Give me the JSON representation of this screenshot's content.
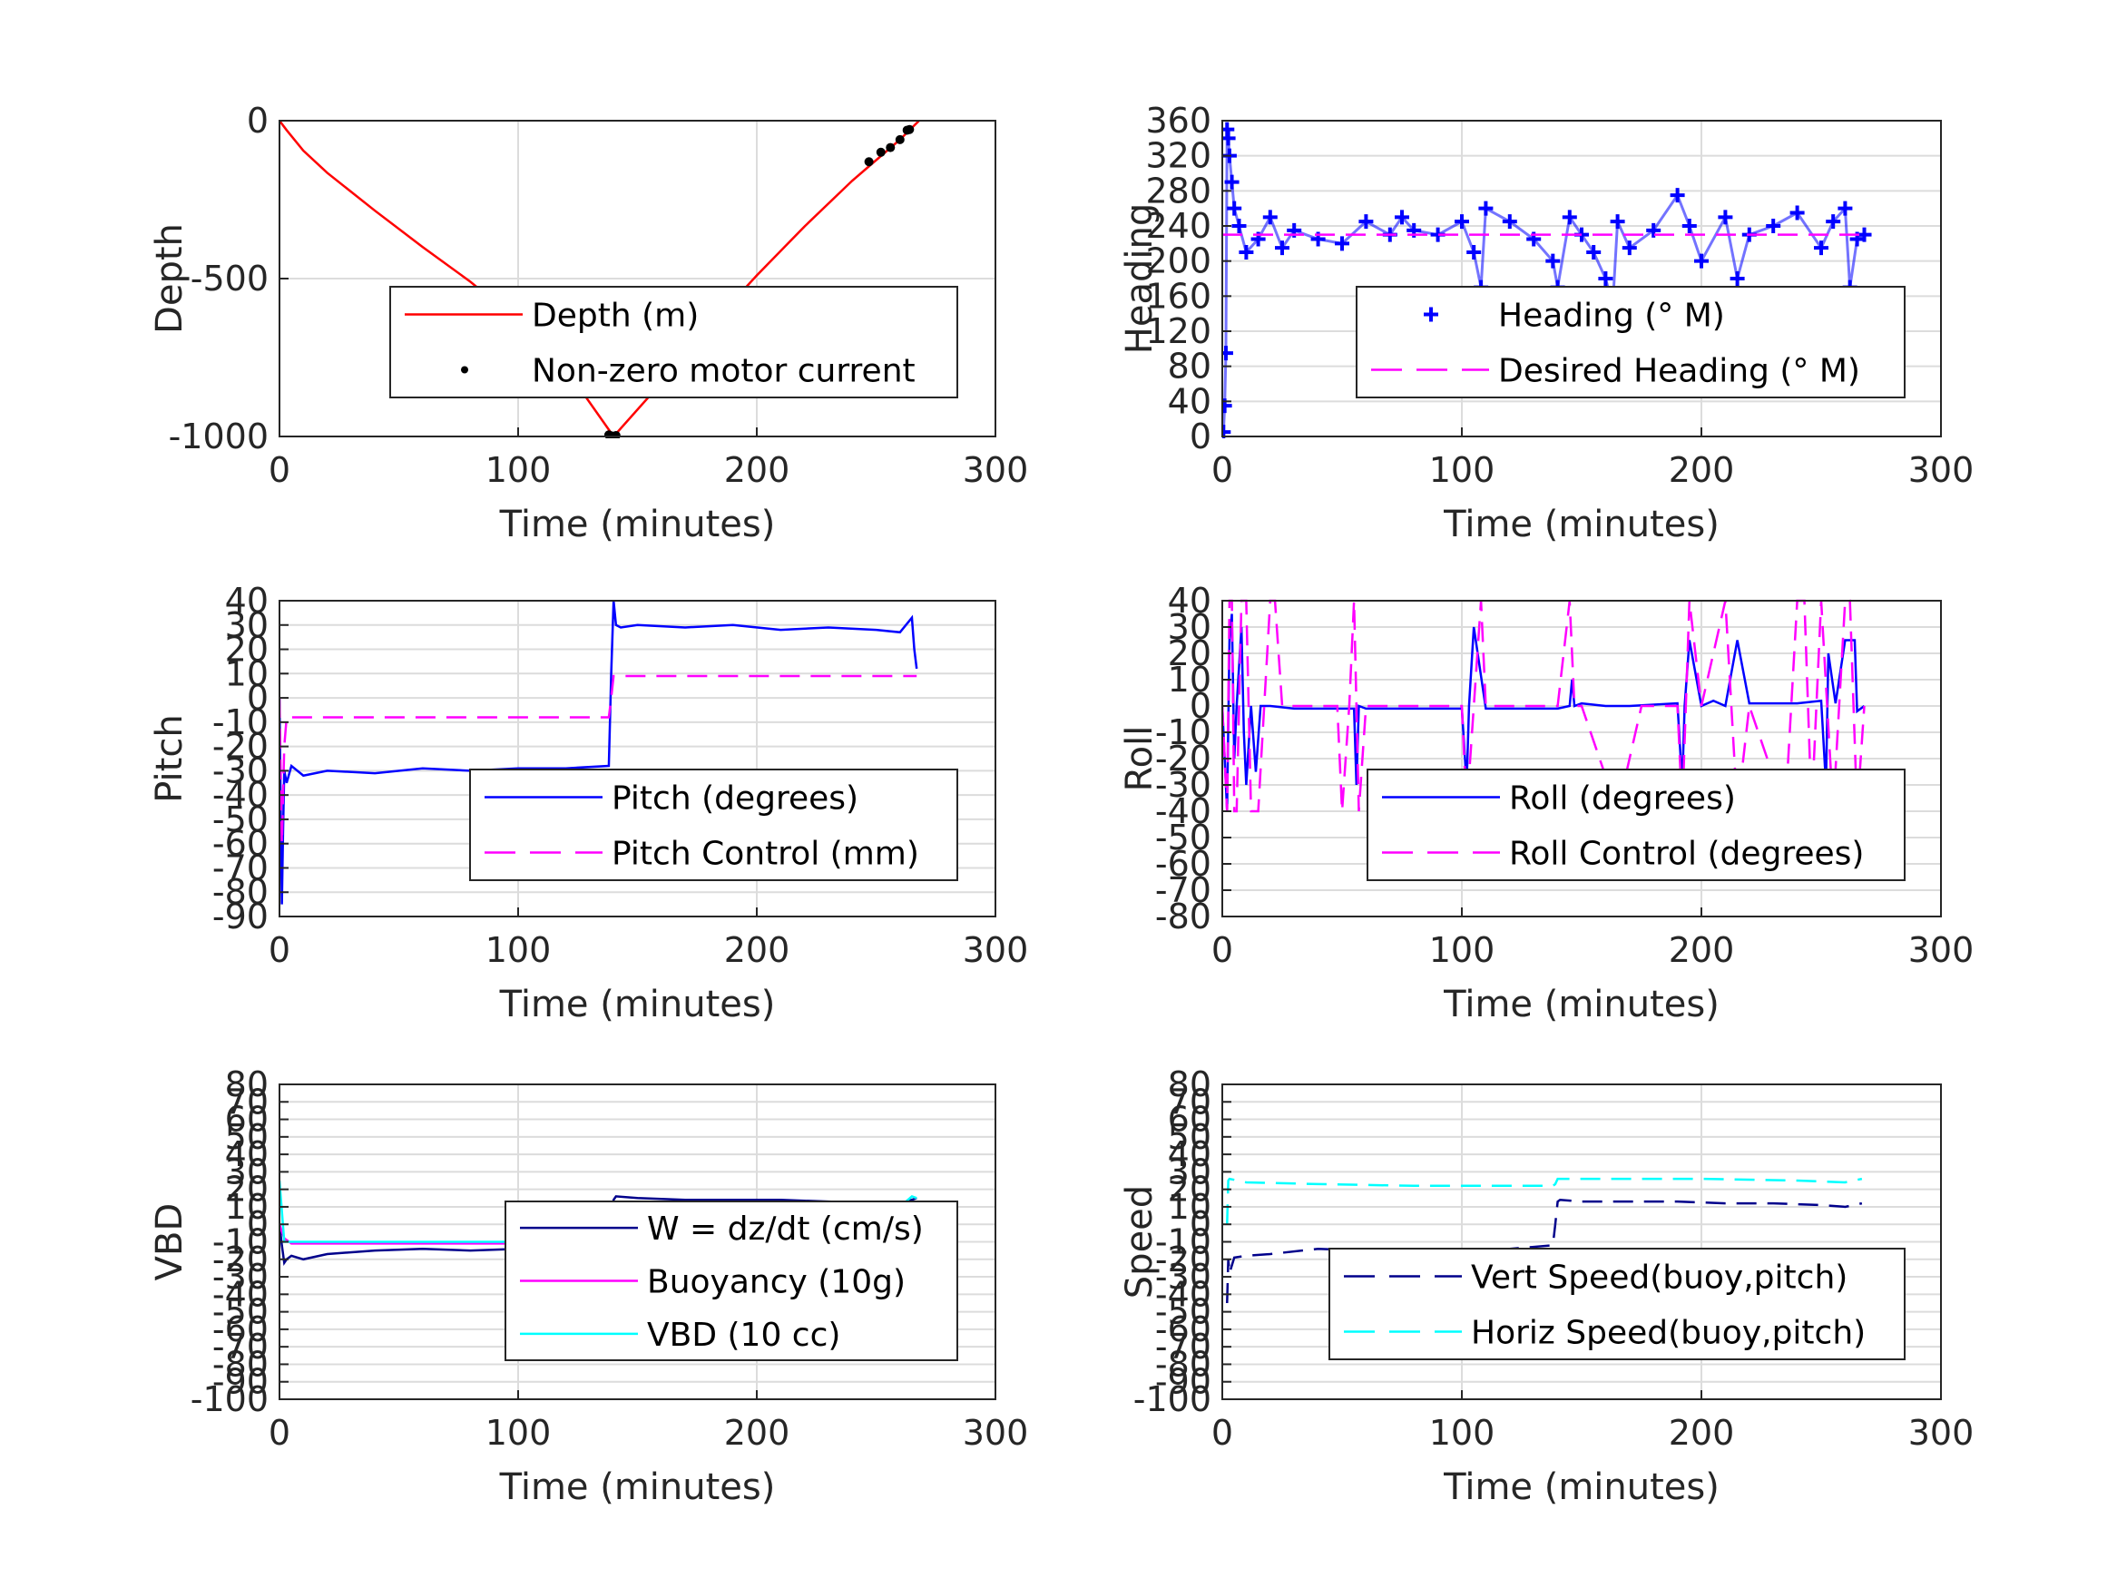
{
  "chart_data": [
    {
      "id": "depth",
      "type": "line",
      "xlabel": "Time (minutes)",
      "ylabel": "Depth",
      "xlim": [
        0,
        300
      ],
      "ylim": [
        -1000,
        0
      ],
      "xticks": [
        0,
        100,
        200,
        300
      ],
      "yticks": [
        -1000,
        -500,
        0
      ],
      "legend_position": "lower-right",
      "series": [
        {
          "name": "Depth (m)",
          "color": "#ff0000",
          "style": "solid",
          "x": [
            0,
            3,
            10,
            20,
            40,
            60,
            80,
            100,
            120,
            140,
            160,
            180,
            200,
            220,
            240,
            250,
            260,
            268
          ],
          "y": [
            0,
            -30,
            -95,
            -165,
            -285,
            -400,
            -510,
            -635,
            -785,
            -1000,
            -830,
            -655,
            -490,
            -335,
            -190,
            -125,
            -60,
            0
          ]
        },
        {
          "name": "Non-zero motor current",
          "color": "#000000",
          "style": "points",
          "x": [
            138,
            139,
            140,
            141,
            247,
            252,
            256,
            260,
            263,
            264
          ],
          "y": [
            -995,
            -998,
            -1000,
            -997,
            -130,
            -100,
            -85,
            -60,
            -30,
            -28
          ]
        }
      ]
    },
    {
      "id": "heading",
      "type": "scatter",
      "xlabel": "Time (minutes)",
      "ylabel": "Heading",
      "xlim": [
        0,
        300
      ],
      "ylim": [
        0,
        360
      ],
      "xticks": [
        0,
        100,
        200,
        300
      ],
      "yticks": [
        0,
        40,
        80,
        120,
        160,
        200,
        240,
        280,
        320,
        360
      ],
      "legend_position": "lower-right",
      "series": [
        {
          "name": "Heading (° M)",
          "color": "#0000ff",
          "style": "plus",
          "x": [
            0.5,
            1,
            1.5,
            2,
            2.5,
            3,
            4,
            5,
            7,
            10,
            15,
            20,
            25,
            30,
            40,
            50,
            60,
            70,
            75,
            80,
            90,
            100,
            105,
            108,
            110,
            120,
            130,
            138,
            140,
            145,
            150,
            155,
            160,
            163,
            165,
            170,
            180,
            190,
            195,
            200,
            210,
            215,
            220,
            230,
            240,
            250,
            255,
            260,
            262,
            265,
            268
          ],
          "y": [
            5,
            35,
            95,
            350,
            340,
            320,
            290,
            260,
            240,
            210,
            225,
            250,
            215,
            235,
            225,
            220,
            245,
            230,
            250,
            235,
            230,
            245,
            210,
            170,
            260,
            245,
            225,
            200,
            170,
            250,
            230,
            210,
            180,
            150,
            245,
            215,
            235,
            275,
            240,
            200,
            250,
            180,
            230,
            240,
            255,
            215,
            245,
            260,
            170,
            225,
            230
          ]
        },
        {
          "name": "Desired Heading (° M)",
          "color": "#ff00ff",
          "style": "dashed",
          "x": [
            0,
            268
          ],
          "y": [
            230,
            230
          ]
        }
      ]
    },
    {
      "id": "pitch",
      "type": "line",
      "xlabel": "Time (minutes)",
      "ylabel": "Pitch",
      "xlim": [
        0,
        300
      ],
      "ylim": [
        -90,
        40
      ],
      "xticks": [
        0,
        100,
        200,
        300
      ],
      "yticks": [
        -90,
        -80,
        -70,
        -60,
        -50,
        -40,
        -30,
        -20,
        -10,
        0,
        10,
        20,
        30,
        40
      ],
      "legend_position": "lower-right",
      "series": [
        {
          "name": "Pitch (degrees)",
          "color": "#0000ff",
          "style": "solid",
          "x": [
            0,
            0.5,
            1,
            1.5,
            2,
            3,
            5,
            10,
            20,
            40,
            60,
            80,
            100,
            120,
            138,
            139,
            140,
            141,
            143,
            150,
            170,
            190,
            210,
            230,
            250,
            260,
            265,
            266,
            267
          ],
          "y": [
            0,
            -45,
            -85,
            -55,
            -30,
            -35,
            -28,
            -32,
            -30,
            -31,
            -29,
            -30,
            -29,
            -29,
            -28,
            10,
            40,
            30,
            29,
            30,
            29,
            30,
            28,
            29,
            28,
            27,
            33,
            20,
            12
          ]
        },
        {
          "name": "Pitch Control (mm)",
          "color": "#ff00ff",
          "style": "dashed",
          "x": [
            0,
            1,
            2,
            3,
            5,
            138,
            139,
            140,
            141,
            267
          ],
          "y": [
            0,
            -60,
            -20,
            -8,
            -8,
            -8,
            0,
            9,
            9,
            9
          ]
        }
      ]
    },
    {
      "id": "roll",
      "type": "line",
      "xlabel": "Time (minutes)",
      "ylabel": "Roll",
      "xlim": [
        0,
        300
      ],
      "ylim": [
        -80,
        40
      ],
      "xticks": [
        0,
        100,
        200,
        300
      ],
      "yticks": [
        -80,
        -70,
        -60,
        -50,
        -40,
        -30,
        -20,
        -10,
        0,
        10,
        20,
        30,
        40
      ],
      "legend_position": "lower-right",
      "series": [
        {
          "name": "Roll (degrees)",
          "color": "#0000ff",
          "style": "solid",
          "x": [
            0,
            2,
            3,
            4,
            5,
            6,
            8,
            9,
            10,
            12,
            14,
            16,
            20,
            30,
            55,
            56,
            57,
            60,
            100,
            102,
            103,
            105,
            110,
            140,
            145,
            146,
            147,
            150,
            160,
            170,
            190,
            192,
            193,
            195,
            200,
            205,
            210,
            215,
            220,
            240,
            250,
            252,
            253,
            256,
            260,
            264,
            265,
            268
          ],
          "y": [
            0,
            -40,
            25,
            35,
            -20,
            0,
            30,
            -10,
            -30,
            0,
            -25,
            0,
            0,
            -1,
            -1,
            -30,
            0,
            -1,
            -1,
            -30,
            0,
            30,
            -1,
            -1,
            0,
            10,
            0,
            1,
            0,
            0,
            1,
            -30,
            0,
            25,
            0,
            2,
            0,
            25,
            1,
            1,
            2,
            -30,
            20,
            1,
            25,
            25,
            -2,
            0
          ]
        },
        {
          "name": "Roll Control (degrees)",
          "color": "#ff00ff",
          "style": "dashed",
          "x": [
            0,
            2,
            3,
            4,
            5,
            6,
            8,
            10,
            12,
            15,
            20,
            22,
            25,
            48,
            50,
            53,
            55,
            57,
            60,
            100,
            102,
            105,
            108,
            110,
            140,
            145,
            147,
            150,
            165,
            175,
            190,
            192,
            195,
            200,
            210,
            215,
            220,
            235,
            240,
            243,
            246,
            250,
            255,
            260,
            262,
            265,
            268
          ],
          "y": [
            0,
            -40,
            40,
            40,
            -40,
            -40,
            40,
            40,
            -40,
            -40,
            40,
            40,
            0,
            0,
            -40,
            0,
            40,
            -40,
            0,
            0,
            -40,
            0,
            40,
            0,
            0,
            40,
            0,
            0,
            -40,
            0,
            0,
            -40,
            40,
            0,
            40,
            -40,
            0,
            -40,
            40,
            40,
            -40,
            40,
            -40,
            40,
            40,
            -40,
            0
          ]
        }
      ]
    },
    {
      "id": "vbd",
      "type": "line",
      "xlabel": "Time (minutes)",
      "ylabel": "VBD",
      "xlim": [
        0,
        300
      ],
      "ylim": [
        -100,
        80
      ],
      "xticks": [
        0,
        100,
        200,
        300
      ],
      "yticks": [
        -100,
        -90,
        -80,
        -70,
        -60,
        -50,
        -40,
        -30,
        -20,
        -10,
        0,
        10,
        20,
        30,
        40,
        50,
        60,
        70,
        80
      ],
      "ytick_labels": [
        "-100",
        "-90",
        "-80",
        "-70",
        "-60",
        "-50",
        "-40",
        "-30",
        "-20",
        "-10",
        "0",
        "10",
        "20",
        "30",
        "40",
        "50",
        "60",
        "70",
        "80"
      ],
      "legend_position": "lower-right",
      "series": [
        {
          "name": "W = dz/dt (cm/s)",
          "color": "#00008b",
          "style": "solid",
          "x": [
            0,
            1,
            2,
            3,
            5,
            10,
            20,
            40,
            60,
            80,
            100,
            120,
            138,
            139,
            140,
            141,
            150,
            170,
            190,
            210,
            230,
            250,
            255,
            260,
            265,
            267
          ],
          "y": [
            0,
            -12,
            -22,
            -20,
            -18,
            -20,
            -17,
            -15,
            -14,
            -15,
            -14,
            -13,
            -12,
            5,
            14,
            16,
            15,
            14,
            14,
            14,
            13,
            12,
            10,
            12,
            14,
            15
          ]
        },
        {
          "name": "Buoyancy (10g)",
          "color": "#ff00ff",
          "style": "solid",
          "x": [
            0,
            2,
            5,
            138,
            139,
            140,
            250,
            260,
            265,
            267
          ],
          "y": [
            0,
            -8,
            -11,
            -11,
            0,
            10,
            10,
            8,
            12,
            11
          ]
        },
        {
          "name": "VBD (10 cc)",
          "color": "#00ffff",
          "style": "solid",
          "x": [
            0,
            2,
            5,
            138,
            139,
            140,
            250,
            260,
            265,
            267
          ],
          "y": [
            25,
            -10,
            -10,
            -10,
            0,
            12,
            12,
            10,
            16,
            15
          ]
        }
      ]
    },
    {
      "id": "speed",
      "type": "line",
      "xlabel": "Time (minutes)",
      "ylabel": "Speed",
      "xlim": [
        0,
        300
      ],
      "ylim": [
        -100,
        80
      ],
      "xticks": [
        0,
        100,
        200,
        300
      ],
      "yticks": [
        -100,
        -90,
        -80,
        -70,
        -60,
        -50,
        -40,
        -30,
        -20,
        -10,
        0,
        10,
        20,
        30,
        40,
        50,
        60,
        70,
        80
      ],
      "ytick_labels": [
        "-100",
        "-90",
        "-80",
        "-70",
        "-60",
        "-50",
        "-40",
        "-30",
        "-20",
        "-10",
        "0",
        "10",
        "20",
        "30",
        "40",
        "50",
        "60",
        "70",
        "80"
      ],
      "legend_position": "lower-right",
      "series": [
        {
          "name": "Vert Speed(buoy,pitch)",
          "color": "#00008b",
          "style": "dashed",
          "x": [
            2,
            2.5,
            3,
            5,
            10,
            20,
            40,
            60,
            80,
            100,
            120,
            138,
            139,
            140,
            141,
            150,
            170,
            190,
            210,
            230,
            250,
            260,
            267
          ],
          "y": [
            -45,
            -20,
            -28,
            -19,
            -18,
            -17,
            -14,
            -15,
            -15,
            -14,
            -14,
            -12,
            0,
            13,
            14,
            13,
            13,
            13,
            12,
            12,
            11,
            10,
            12
          ]
        },
        {
          "name": "Horiz Speed(buoy,pitch)",
          "color": "#00ffff",
          "style": "dashed",
          "x": [
            2,
            2.5,
            3,
            10,
            40,
            80,
            120,
            138,
            139,
            140,
            141,
            160,
            200,
            240,
            260,
            267
          ],
          "y": [
            0,
            25,
            26,
            24,
            23,
            22,
            22,
            22,
            23,
            26,
            26,
            26,
            26,
            25,
            24,
            26
          ]
        }
      ]
    }
  ]
}
